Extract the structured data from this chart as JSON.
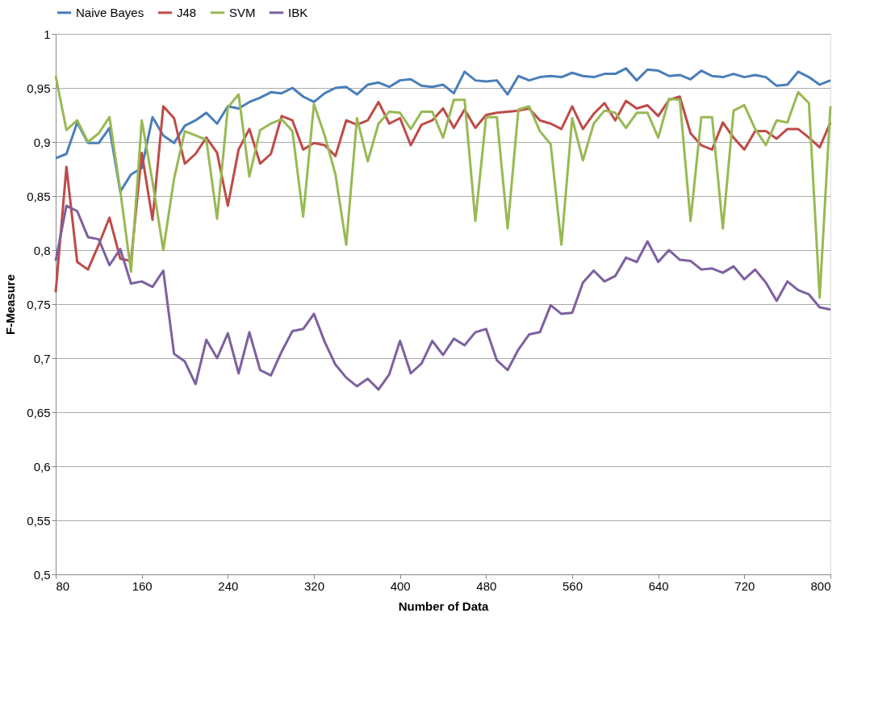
{
  "chart_data": {
    "type": "line",
    "xlabel": "Number of Data",
    "ylabel": "F-Measure",
    "x": [
      80,
      90,
      100,
      110,
      120,
      130,
      140,
      150,
      160,
      170,
      180,
      190,
      200,
      210,
      220,
      230,
      240,
      250,
      260,
      270,
      280,
      290,
      300,
      310,
      320,
      330,
      340,
      350,
      360,
      370,
      380,
      390,
      400,
      410,
      420,
      430,
      440,
      450,
      460,
      470,
      480,
      490,
      500,
      510,
      520,
      530,
      540,
      550,
      560,
      570,
      580,
      590,
      600,
      610,
      620,
      630,
      640,
      650,
      660,
      670,
      680,
      690,
      700,
      710,
      720,
      730,
      740,
      750,
      760,
      770,
      780,
      790,
      800
    ],
    "series": [
      {
        "name": "Naive Bayes",
        "color": "#4a7ebb",
        "values": [
          0.885,
          0.889,
          0.918,
          0.899,
          0.899,
          0.913,
          0.854,
          0.87,
          0.876,
          0.923,
          0.906,
          0.899,
          0.915,
          0.92,
          0.927,
          0.917,
          0.933,
          0.931,
          0.937,
          0.941,
          0.946,
          0.945,
          0.95,
          0.942,
          0.937,
          0.945,
          0.95,
          0.951,
          0.944,
          0.953,
          0.955,
          0.951,
          0.957,
          0.958,
          0.952,
          0.951,
          0.953,
          0.945,
          0.965,
          0.957,
          0.956,
          0.957,
          0.944,
          0.961,
          0.957,
          0.96,
          0.961,
          0.96,
          0.964,
          0.961,
          0.96,
          0.963,
          0.963,
          0.968,
          0.957,
          0.967,
          0.966,
          0.961,
          0.962,
          0.958,
          0.966,
          0.961,
          0.96,
          0.963,
          0.96,
          0.962,
          0.96,
          0.952,
          0.953,
          0.965,
          0.96,
          0.953,
          0.957
        ]
      },
      {
        "name": "J48",
        "color": "#be4b48",
        "values": [
          0.761,
          0.877,
          0.789,
          0.782,
          0.805,
          0.83,
          0.792,
          0.79,
          0.89,
          0.828,
          0.933,
          0.922,
          0.88,
          0.889,
          0.904,
          0.89,
          0.841,
          0.893,
          0.912,
          0.88,
          0.889,
          0.924,
          0.92,
          0.893,
          0.899,
          0.897,
          0.887,
          0.92,
          0.916,
          0.92,
          0.937,
          0.917,
          0.922,
          0.897,
          0.916,
          0.92,
          0.931,
          0.913,
          0.93,
          0.913,
          0.925,
          0.927,
          0.928,
          0.929,
          0.931,
          0.92,
          0.917,
          0.912,
          0.933,
          0.912,
          0.926,
          0.936,
          0.92,
          0.938,
          0.931,
          0.934,
          0.924,
          0.939,
          0.942,
          0.908,
          0.897,
          0.893,
          0.918,
          0.904,
          0.893,
          0.91,
          0.91,
          0.903,
          0.912,
          0.912,
          0.904,
          0.895,
          0.918
        ]
      },
      {
        "name": "SVM",
        "color": "#98b954",
        "values": [
          0.961,
          0.911,
          0.92,
          0.9,
          0.908,
          0.923,
          0.855,
          0.78,
          0.92,
          0.863,
          0.8,
          0.866,
          0.91,
          0.906,
          0.902,
          0.829,
          0.932,
          0.944,
          0.868,
          0.911,
          0.917,
          0.921,
          0.91,
          0.831,
          0.935,
          0.906,
          0.87,
          0.805,
          0.922,
          0.882,
          0.917,
          0.928,
          0.927,
          0.912,
          0.928,
          0.928,
          0.904,
          0.939,
          0.939,
          0.827,
          0.923,
          0.923,
          0.82,
          0.93,
          0.933,
          0.91,
          0.898,
          0.805,
          0.922,
          0.883,
          0.917,
          0.929,
          0.927,
          0.913,
          0.927,
          0.927,
          0.904,
          0.94,
          0.939,
          0.827,
          0.923,
          0.923,
          0.82,
          0.929,
          0.934,
          0.912,
          0.897,
          0.92,
          0.918,
          0.946,
          0.936,
          0.756,
          0.933
        ]
      },
      {
        "name": "IBK",
        "color": "#7d60a0",
        "values": [
          0.79,
          0.841,
          0.836,
          0.812,
          0.81,
          0.786,
          0.801,
          0.769,
          0.771,
          0.766,
          0.781,
          0.704,
          0.697,
          0.676,
          0.717,
          0.7,
          0.723,
          0.686,
          0.724,
          0.689,
          0.684,
          0.706,
          0.725,
          0.727,
          0.741,
          0.715,
          0.694,
          0.682,
          0.674,
          0.681,
          0.671,
          0.685,
          0.716,
          0.686,
          0.695,
          0.716,
          0.703,
          0.718,
          0.712,
          0.724,
          0.727,
          0.698,
          0.689,
          0.708,
          0.722,
          0.724,
          0.749,
          0.741,
          0.742,
          0.77,
          0.781,
          0.771,
          0.776,
          0.793,
          0.789,
          0.808,
          0.789,
          0.8,
          0.791,
          0.79,
          0.782,
          0.783,
          0.779,
          0.785,
          0.773,
          0.782,
          0.77,
          0.753,
          0.771,
          0.763,
          0.759,
          0.747,
          0.745
        ]
      }
    ],
    "xlim": [
      80,
      800
    ],
    "xticks": [
      80,
      160,
      240,
      320,
      400,
      480,
      560,
      640,
      720,
      800
    ],
    "ylim": [
      0.5,
      1
    ],
    "yticks": [
      {
        "value": 0.5,
        "label": "0,5"
      },
      {
        "value": 0.55,
        "label": "0,55"
      },
      {
        "value": 0.6,
        "label": "0,6"
      },
      {
        "value": 0.65,
        "label": "0,65"
      },
      {
        "value": 0.7,
        "label": "0,7"
      },
      {
        "value": 0.75,
        "label": "0,75"
      },
      {
        "value": 0.8,
        "label": "0,8"
      },
      {
        "value": 0.85,
        "label": "0,85"
      },
      {
        "value": 0.9,
        "label": "0,9"
      },
      {
        "value": 0.95,
        "label": "0,95"
      },
      {
        "value": 1,
        "label": "1"
      }
    ],
    "grid": "y",
    "legend": "top",
    "marker": "none",
    "line_style": "solid"
  }
}
